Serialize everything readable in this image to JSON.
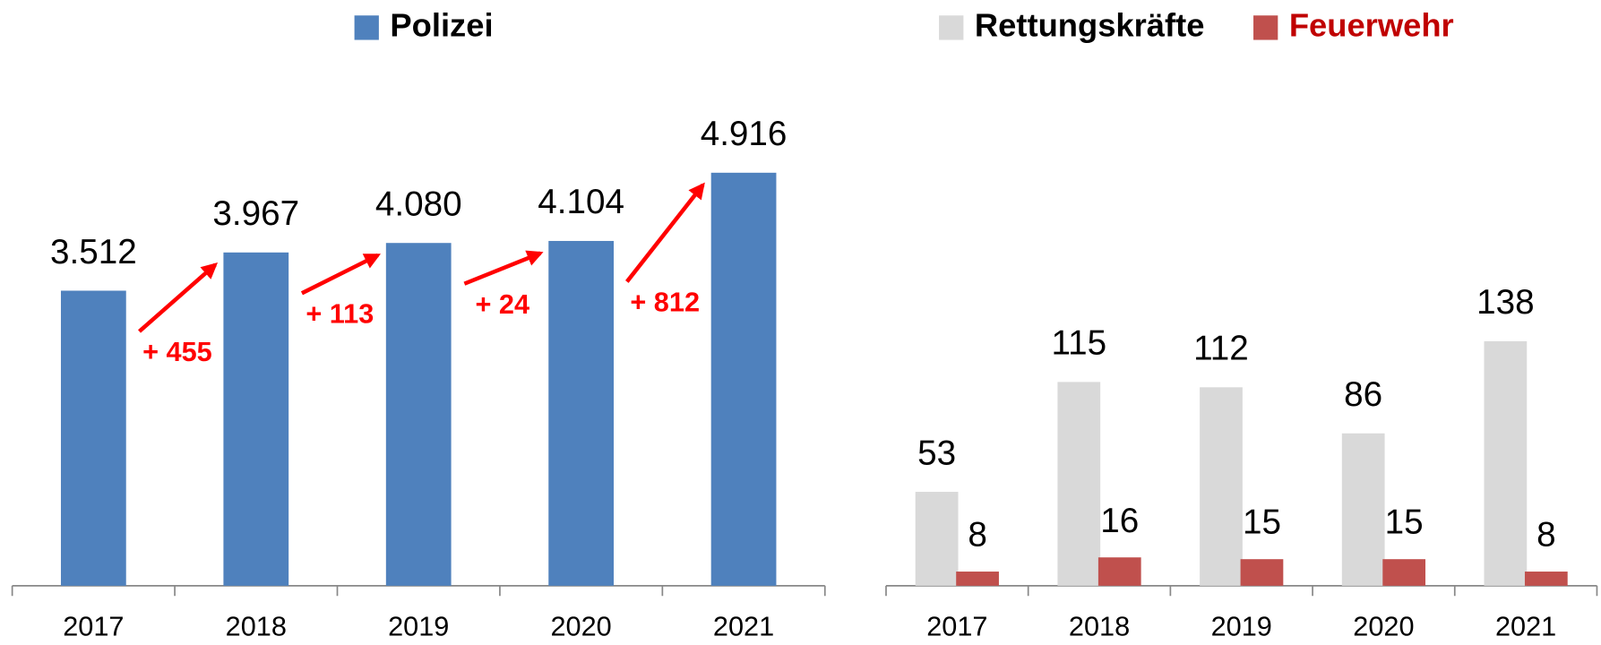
{
  "chart_data": [
    {
      "type": "bar",
      "categories": [
        "2017",
        "2018",
        "2019",
        "2020",
        "2021"
      ],
      "series": [
        {
          "name": "Polizei",
          "color": "#4f81bd",
          "legend_text_color": "#000000",
          "values": [
            3512,
            3967,
            4080,
            4104,
            4916
          ],
          "value_labels": [
            "3.512",
            "3.967",
            "4.080",
            "4.104",
            "4.916"
          ]
        }
      ],
      "annotations": [
        "+ 455",
        "+ 113",
        "+ 24",
        "+ 812"
      ],
      "annotation_color": "#ff0000",
      "ylim": [
        0,
        5000
      ]
    },
    {
      "type": "grouped_bar",
      "categories": [
        "2017",
        "2018",
        "2019",
        "2020",
        "2021"
      ],
      "series": [
        {
          "name": "Rettungskräfte",
          "color": "#d9d9d9",
          "legend_text_color": "#000000",
          "values": [
            53,
            115,
            112,
            86,
            138
          ]
        },
        {
          "name": "Feuerwehr",
          "color": "#c0504d",
          "legend_text_color": "#c00000",
          "values": [
            8,
            16,
            15,
            15,
            8
          ]
        }
      ],
      "ylim": [
        0,
        150
      ]
    }
  ]
}
